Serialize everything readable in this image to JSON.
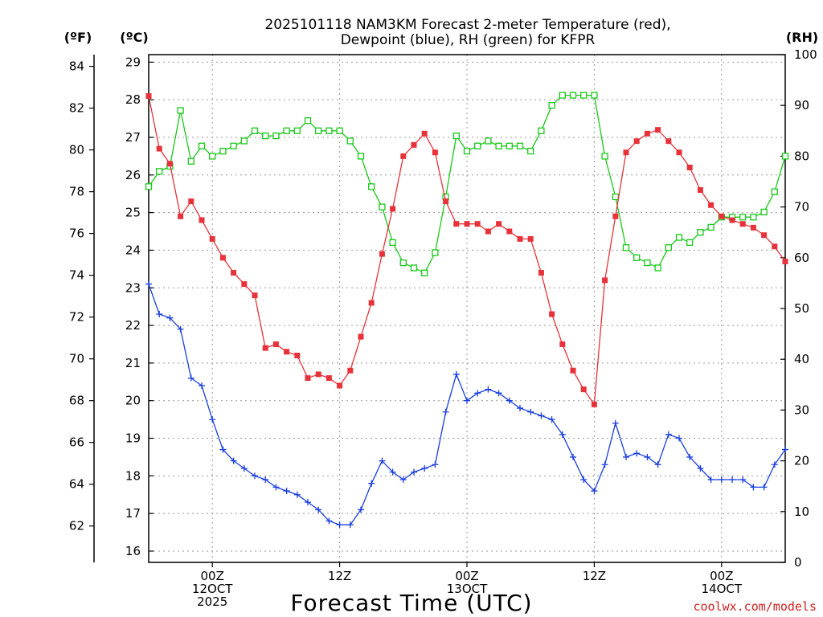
{
  "title_line1": "2025101118 NAM3KM Forecast 2-meter Temperature (red),",
  "title_line2": "Dewpoint (blue), RH (green) for KFPR",
  "unit_f": "(ºF)",
  "unit_c": "(ºC)",
  "unit_rh": "(RH)",
  "xlabel": "Forecast Time (UTC)",
  "credit": "coolwx.com/models",
  "colors": {
    "temp": "#e8323a",
    "dewpoint": "#1a3fe0",
    "rh": "#18c818",
    "grid": "#999999"
  },
  "chart_data": {
    "type": "line",
    "title": "2025101118 NAM3KM Forecast 2-meter Temperature (red), Dewpoint (blue), RH (green) for KFPR",
    "xlabel": "Forecast Time (UTC)",
    "x_hours": "forecast hours from 2025-10-11 18Z, hourly, 0 to 60",
    "x_ticks": [
      {
        "hour": 6,
        "lines": [
          "00Z",
          "12OCT",
          "2025"
        ]
      },
      {
        "hour": 18,
        "lines": [
          "12Z"
        ]
      },
      {
        "hour": 30,
        "lines": [
          "00Z",
          "13OCT"
        ]
      },
      {
        "hour": 42,
        "lines": [
          "12Z"
        ]
      },
      {
        "hour": 54,
        "lines": [
          "00Z",
          "14OCT"
        ]
      }
    ],
    "xlim": [
      0,
      60
    ],
    "celsius_axis": {
      "ylim": [
        15.7,
        29.2
      ],
      "ticks": [
        "16",
        "17",
        "18",
        "19",
        "20",
        "21",
        "22",
        "23",
        "24",
        "25",
        "26",
        "27",
        "28",
        "29"
      ]
    },
    "fahrenheit_axis": {
      "ylim": [
        60.26,
        84.56
      ],
      "ticks": [
        "62",
        "64",
        "66",
        "68",
        "70",
        "72",
        "74",
        "76",
        "78",
        "80",
        "82",
        "84"
      ]
    },
    "rh_axis": {
      "ylim": [
        0,
        100
      ],
      "ticks": [
        "0",
        "10",
        "20",
        "30",
        "40",
        "50",
        "60",
        "70",
        "80",
        "90",
        "100"
      ]
    },
    "series": [
      {
        "name": "Temperature",
        "unit": "C",
        "marker": "filled-square",
        "values": [
          28.1,
          26.7,
          26.3,
          24.9,
          25.3,
          24.8,
          24.3,
          23.8,
          23.4,
          23.1,
          22.8,
          21.4,
          21.5,
          21.3,
          21.2,
          20.6,
          20.7,
          20.6,
          20.4,
          20.8,
          21.7,
          22.6,
          23.9,
          25.1,
          26.5,
          26.8,
          27.1,
          26.6,
          25.3,
          24.7,
          24.7,
          24.7,
          24.5,
          24.7,
          24.5,
          24.3,
          24.3,
          23.4,
          22.3,
          21.5,
          20.8,
          20.3,
          19.9,
          23.2,
          24.9,
          26.6,
          26.9,
          27.1,
          27.2,
          26.9,
          26.6,
          26.2,
          25.6,
          25.2,
          24.9,
          24.8,
          24.7,
          24.6,
          24.4,
          24.1,
          23.7
        ]
      },
      {
        "name": "Dewpoint",
        "unit": "C",
        "marker": "plus",
        "values": [
          23.1,
          22.3,
          22.2,
          21.9,
          20.6,
          20.4,
          19.5,
          18.7,
          18.4,
          18.2,
          18.0,
          17.9,
          17.7,
          17.6,
          17.5,
          17.3,
          17.1,
          16.8,
          16.7,
          16.7,
          17.1,
          17.8,
          18.4,
          18.1,
          17.9,
          18.1,
          18.2,
          18.3,
          19.7,
          20.7,
          20.0,
          20.2,
          20.3,
          20.2,
          20.0,
          19.8,
          19.7,
          19.6,
          19.5,
          19.1,
          18.5,
          17.9,
          17.6,
          18.3,
          19.4,
          18.5,
          18.6,
          18.5,
          18.3,
          19.1,
          19.0,
          18.5,
          18.2,
          17.9,
          17.9,
          17.9,
          17.9,
          17.7,
          17.7,
          18.3,
          18.7
        ]
      },
      {
        "name": "RH",
        "unit": "%",
        "marker": "open-square",
        "values": [
          74,
          77,
          78,
          89,
          79,
          82,
          80,
          81,
          82,
          83,
          85,
          84,
          84,
          85,
          85,
          87,
          85,
          85,
          85,
          83,
          80,
          74,
          70,
          63,
          59,
          58,
          57,
          61,
          72,
          84,
          81,
          82,
          83,
          82,
          82,
          82,
          81,
          85,
          90,
          92,
          92,
          92,
          92,
          80,
          72,
          62,
          60,
          59,
          58,
          62,
          64,
          63,
          65,
          66,
          68,
          68,
          68,
          68,
          69,
          73,
          80
        ]
      }
    ]
  }
}
